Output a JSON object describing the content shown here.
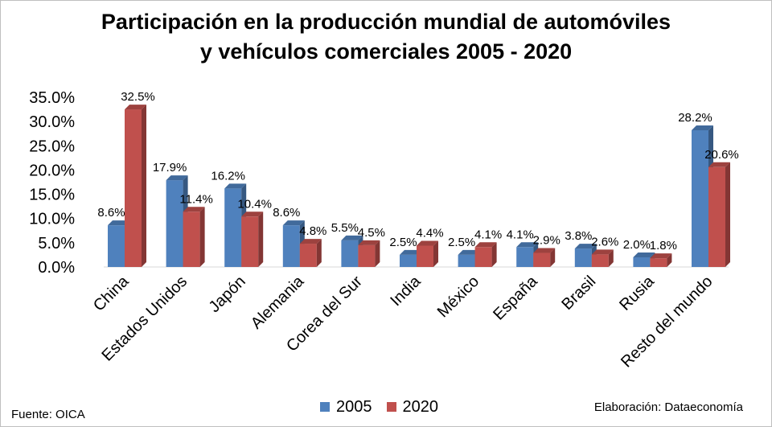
{
  "chart_data": {
    "type": "bar",
    "title_lines": [
      "Participación en la producción mundial de automóviles",
      "y vehículos comerciales 2005 - 2020"
    ],
    "categories": [
      "China",
      "Estados Unidos",
      "Japón",
      "Alemania",
      "Corea del Sur",
      "India",
      "México",
      "España",
      "Brasil",
      "Rusia",
      "Resto del mundo"
    ],
    "series": [
      {
        "name": "2005",
        "color": "#4f81bd",
        "values": [
          8.6,
          17.9,
          16.2,
          8.6,
          5.5,
          2.5,
          2.5,
          4.1,
          3.8,
          2.0,
          28.2
        ],
        "labels": [
          "8.6%",
          "17.9%",
          "16.2%",
          "8.6%",
          "5.5%",
          "2.5%",
          "2.5%",
          "4.1%",
          "3.8%",
          "2.0%",
          "28.2%"
        ]
      },
      {
        "name": "2020",
        "color": "#c0504d",
        "values": [
          32.5,
          11.4,
          10.4,
          4.8,
          4.5,
          4.4,
          4.1,
          2.9,
          2.6,
          1.8,
          20.6
        ],
        "labels": [
          "32.5%",
          "11.4%",
          "10.4%",
          "4.8%",
          "4.5%",
          "4.4%",
          "4.1%",
          "2.9%",
          "2.6%",
          "1.8%",
          "20.6%"
        ]
      }
    ],
    "ylim": [
      0,
      35
    ],
    "yticks": [
      0,
      5,
      10,
      15,
      20,
      25,
      30,
      35
    ],
    "ytick_labels": [
      "0.0%",
      "5.0%",
      "10.0%",
      "15.0%",
      "20.0%",
      "25.0%",
      "30.0%",
      "35.0%"
    ],
    "bar_style": "3d",
    "gridlines": false,
    "legend_position": "bottom"
  },
  "footer": {
    "source": "Fuente: OICA",
    "credit": "Elaboración: Dataeconomía"
  }
}
